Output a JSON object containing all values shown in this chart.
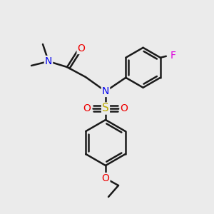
{
  "background_color": "#ebebeb",
  "bond_color": "#1a1a1a",
  "bond_width": 1.8,
  "atom_colors": {
    "N": "#0000ee",
    "O": "#ee0000",
    "S": "#bbaa00",
    "F": "#dd00dd",
    "C": "#1a1a1a"
  },
  "fs": 10
}
